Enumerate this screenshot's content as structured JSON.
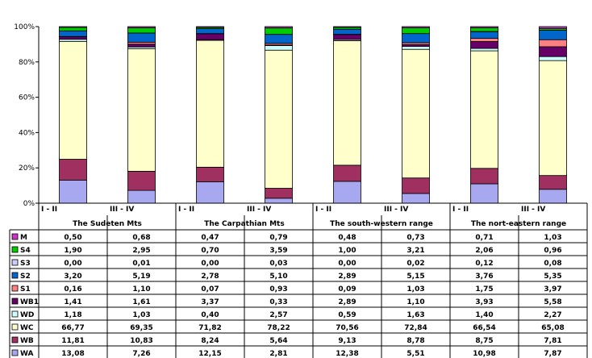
{
  "chart_data": {
    "type": "bar",
    "stacked": "percent",
    "ylim": [
      0,
      100
    ],
    "y_ticks": [
      "0%",
      "20%",
      "40%",
      "60%",
      "80%",
      "100%"
    ],
    "groups": [
      "The Sudeten Mts",
      "The Carpathian Mts",
      "The south-western range",
      "The nort-eastern range"
    ],
    "categories": [
      "I - II",
      "III - IV",
      "I - II",
      "III - IV",
      "I - II",
      "III - IV",
      "I - II",
      "III - IV"
    ],
    "series": [
      {
        "name": "WA",
        "color": "#a8a8f0",
        "values": [
          13.08,
          7.26,
          12.15,
          2.81,
          12.38,
          5.51,
          10.98,
          7.87
        ],
        "labels": [
          "13,08",
          "7,26",
          "12,15",
          "2,81",
          "12,38",
          "5,51",
          "10,98",
          "7,87"
        ]
      },
      {
        "name": "WB",
        "color": "#a0305f",
        "values": [
          11.81,
          10.83,
          8.24,
          5.64,
          9.13,
          8.78,
          8.75,
          7.81
        ],
        "labels": [
          "11,81",
          "10,83",
          "8,24",
          "5,64",
          "9,13",
          "8,78",
          "8,75",
          "7,81"
        ]
      },
      {
        "name": "WC",
        "color": "#ffffcc",
        "values": [
          66.77,
          69.35,
          71.82,
          78.22,
          70.56,
          72.84,
          66.54,
          65.08
        ],
        "labels": [
          "66,77",
          "69,35",
          "71,82",
          "78,22",
          "70,56",
          "72,84",
          "66,54",
          "65,08"
        ]
      },
      {
        "name": "WD",
        "color": "#ccffff",
        "values": [
          1.18,
          1.03,
          0.4,
          2.57,
          0.59,
          1.63,
          1.4,
          2.27
        ],
        "labels": [
          "1,18",
          "1,03",
          "0,40",
          "2,57",
          "0,59",
          "1,63",
          "1,40",
          "2,27"
        ]
      },
      {
        "name": "WB1",
        "color": "#660066",
        "values": [
          1.41,
          1.61,
          3.37,
          0.33,
          2.89,
          1.1,
          3.93,
          5.58
        ],
        "labels": [
          "1,41",
          "1,61",
          "3,37",
          "0,33",
          "2,89",
          "1,10",
          "3,93",
          "5,58"
        ]
      },
      {
        "name": "S1",
        "color": "#ff8080",
        "values": [
          0.16,
          1.1,
          0.07,
          0.93,
          0.09,
          1.03,
          1.75,
          3.97
        ],
        "labels": [
          "0,16",
          "1,10",
          "0,07",
          "0,93",
          "0,09",
          "1,03",
          "1,75",
          "3,97"
        ]
      },
      {
        "name": "S2",
        "color": "#0066cc",
        "values": [
          3.2,
          5.19,
          2.78,
          5.1,
          2.89,
          5.15,
          3.76,
          5.35
        ],
        "labels": [
          "3,20",
          "5,19",
          "2,78",
          "5,10",
          "2,89",
          "5,15",
          "3,76",
          "5,35"
        ]
      },
      {
        "name": "S3",
        "color": "#ccccff",
        "values": [
          0.0,
          0.01,
          0.0,
          0.03,
          0.0,
          0.02,
          0.12,
          0.08
        ],
        "labels": [
          "0,00",
          "0,01",
          "0,00",
          "0,03",
          "0,00",
          "0,02",
          "0,12",
          "0,08"
        ]
      },
      {
        "name": "S4",
        "color": "#00cc00",
        "values": [
          1.9,
          2.95,
          0.7,
          3.59,
          1.0,
          3.21,
          2.06,
          0.96
        ],
        "labels": [
          "1,90",
          "2,95",
          "0,70",
          "3,59",
          "1,00",
          "3,21",
          "2,06",
          "0,96"
        ]
      },
      {
        "name": "M",
        "color": "#cc33cc",
        "values": [
          0.5,
          0.68,
          0.47,
          0.79,
          0.48,
          0.73,
          0.71,
          1.03
        ],
        "labels": [
          "0,50",
          "0,68",
          "0,47",
          "0,79",
          "0,48",
          "0,73",
          "0,71",
          "1,03"
        ]
      }
    ],
    "table_row_order": [
      "M",
      "S4",
      "S3",
      "S2",
      "S1",
      "WB1",
      "WD",
      "WC",
      "WB",
      "WA"
    ],
    "grid": false,
    "legend": "data-table"
  }
}
